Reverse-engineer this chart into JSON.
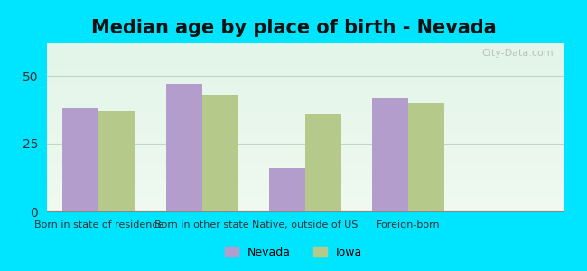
{
  "title": "Median age by place of birth - Nevada",
  "categories": [
    "Born in state of residence",
    "Born in other state",
    "Native, outside of US",
    "Foreign-born"
  ],
  "nevada_values": [
    38,
    47,
    16,
    42
  ],
  "iowa_values": [
    37,
    43,
    36,
    40
  ],
  "nevada_color": "#b39dcc",
  "iowa_color": "#b5c98a",
  "ylim": [
    0,
    62
  ],
  "yticks": [
    0,
    25,
    50
  ],
  "bar_width": 0.35,
  "background_outer": "#00e5ff",
  "background_inner_top": "#e8f5e9",
  "background_inner_bottom": "#c8eed8",
  "grid_color": "#c0d8c0",
  "title_fontsize": 15,
  "legend_nevada": "Nevada",
  "legend_iowa": "Iowa",
  "watermark": "City-Data.com"
}
